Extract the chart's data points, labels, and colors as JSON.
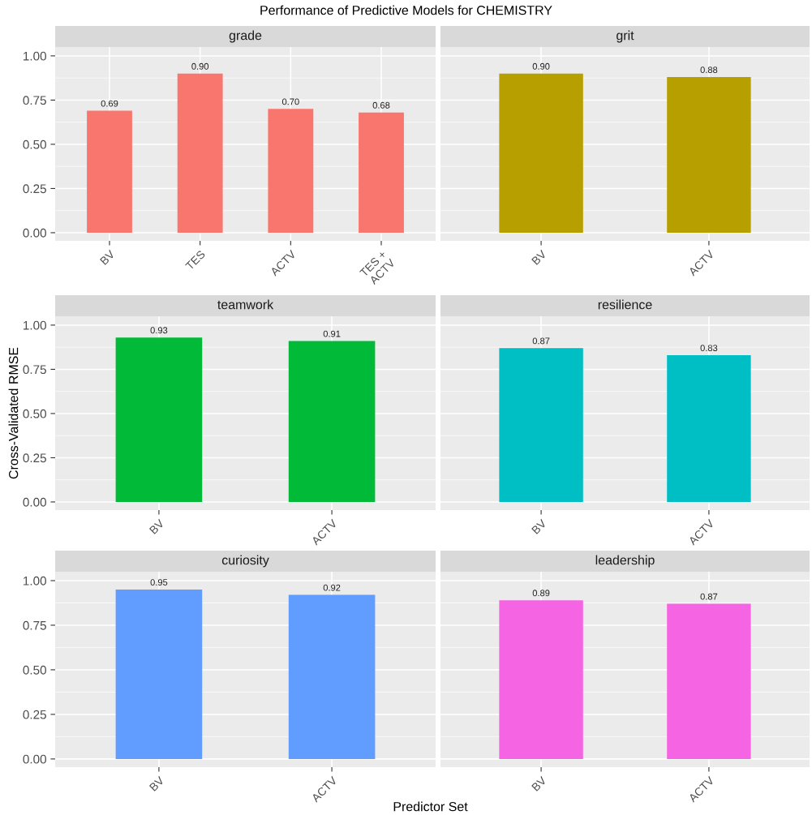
{
  "chart_data": [
    {
      "type": "bar",
      "title": "grade",
      "annotations": [
        "Performance of Predictive Models for CHEMISTRY"
      ],
      "categories": [
        "BV",
        "TES",
        "ACTV",
        "TES +\nACTV"
      ],
      "values": [
        0.69,
        0.9,
        0.7,
        0.68
      ],
      "value_labels": [
        "0.69",
        "0.90",
        "0.70",
        "0.68"
      ],
      "color": "#f8766d",
      "ylim": [
        -0.046,
        1.05
      ],
      "yticks": [
        {
          "value": 0,
          "label": "0.00"
        },
        {
          "value": 0.25,
          "label": "0.25"
        },
        {
          "value": 0.5,
          "label": "0.50"
        },
        {
          "value": 0.75,
          "label": "0.75"
        },
        {
          "value": 1,
          "label": "1.00"
        }
      ],
      "grid": true
    },
    {
      "type": "bar",
      "title": "grit",
      "categories": [
        "BV",
        "ACTV"
      ],
      "values": [
        0.9,
        0.88
      ],
      "value_labels": [
        "0.90",
        "0.88"
      ],
      "color": "#b79f00",
      "ylim": [
        -0.046,
        1.05
      ],
      "yticks": [
        {
          "value": 0,
          "label": null
        },
        {
          "value": 0.25,
          "label": null
        },
        {
          "value": 0.5,
          "label": null
        },
        {
          "value": 0.75,
          "label": null
        },
        {
          "value": 1,
          "label": null
        }
      ],
      "grid": true,
      "tick_labels": "x"
    },
    {
      "type": "bar",
      "title": "teamwork",
      "ylabel": "Cross-Validated RMSE",
      "categories": [
        "BV",
        "ACTV"
      ],
      "values": [
        0.93,
        0.91
      ],
      "value_labels": [
        "0.93",
        "0.91"
      ],
      "color": "#00ba38",
      "ylim": [
        -0.046,
        1.05
      ],
      "yticks": [
        {
          "value": 0,
          "label": "0.00"
        },
        {
          "value": 0.25,
          "label": "0.25"
        },
        {
          "value": 0.5,
          "label": "0.50"
        },
        {
          "value": 0.75,
          "label": "0.75"
        },
        {
          "value": 1,
          "label": "1.00"
        }
      ],
      "grid": true
    },
    {
      "type": "bar",
      "title": "resilience",
      "categories": [
        "BV",
        "ACTV"
      ],
      "values": [
        0.87,
        0.83
      ],
      "value_labels": [
        "0.87",
        "0.83"
      ],
      "color": "#00bfc4",
      "ylim": [
        -0.046,
        1.05
      ],
      "yticks": [
        {
          "value": 0,
          "label": null
        },
        {
          "value": 0.25,
          "label": null
        },
        {
          "value": 0.5,
          "label": null
        },
        {
          "value": 0.75,
          "label": null
        },
        {
          "value": 1,
          "label": null
        }
      ],
      "grid": true,
      "tick_labels": "x"
    },
    {
      "type": "bar",
      "title": "curiosity",
      "xlabel": "Predictor Set",
      "categories": [
        "BV",
        "ACTV"
      ],
      "values": [
        0.95,
        0.92
      ],
      "value_labels": [
        "0.95",
        "0.92"
      ],
      "color": "#619cff",
      "ylim": [
        -0.046,
        1.05
      ],
      "yticks": [
        {
          "value": 0,
          "label": "0.00"
        },
        {
          "value": 0.25,
          "label": "0.25"
        },
        {
          "value": 0.5,
          "label": "0.50"
        },
        {
          "value": 0.75,
          "label": "0.75"
        },
        {
          "value": 1,
          "label": "1.00"
        }
      ],
      "grid": true
    },
    {
      "type": "bar",
      "title": "leadership",
      "categories": [
        "BV",
        "ACTV"
      ],
      "values": [
        0.89,
        0.87
      ],
      "value_labels": [
        "0.89",
        "0.87"
      ],
      "color": "#f564e3",
      "ylim": [
        -0.046,
        1.05
      ],
      "yticks": [
        {
          "value": 0,
          "label": null
        },
        {
          "value": 0.25,
          "label": null
        },
        {
          "value": 0.5,
          "label": null
        },
        {
          "value": 0.75,
          "label": null
        },
        {
          "value": 1,
          "label": null
        }
      ],
      "grid": true,
      "tick_labels": "x"
    }
  ]
}
